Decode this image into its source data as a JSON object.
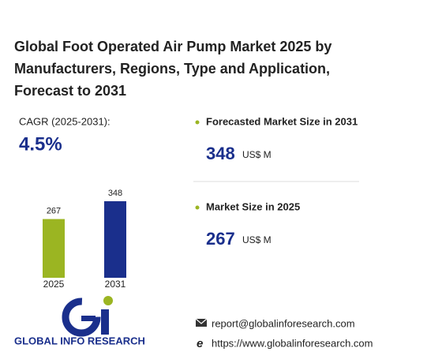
{
  "title": [
    "Global Foot Operated Air Pump Market 2025 by",
    "Manufacturers, Regions, Type and Application,",
    "Forecast to 2031"
  ],
  "cagr_label": "CAGR (2025-2031):",
  "cagr_value": "4.5%",
  "forecast_label": "Forecasted Market Size in 2031",
  "market_label": "Market Size in 2025",
  "unit": "US$ M",
  "logo_text": "GLOBAL INFO RESEARCH",
  "email": "report@globalinforesearch.com",
  "website": "https://www.globalinforesearch.com",
  "chart_data": {
    "type": "bar",
    "categories": [
      "2025",
      "2031"
    ],
    "values": [
      267,
      348
    ],
    "colors": [
      "#9bb522",
      "#1a2f8c"
    ]
  }
}
